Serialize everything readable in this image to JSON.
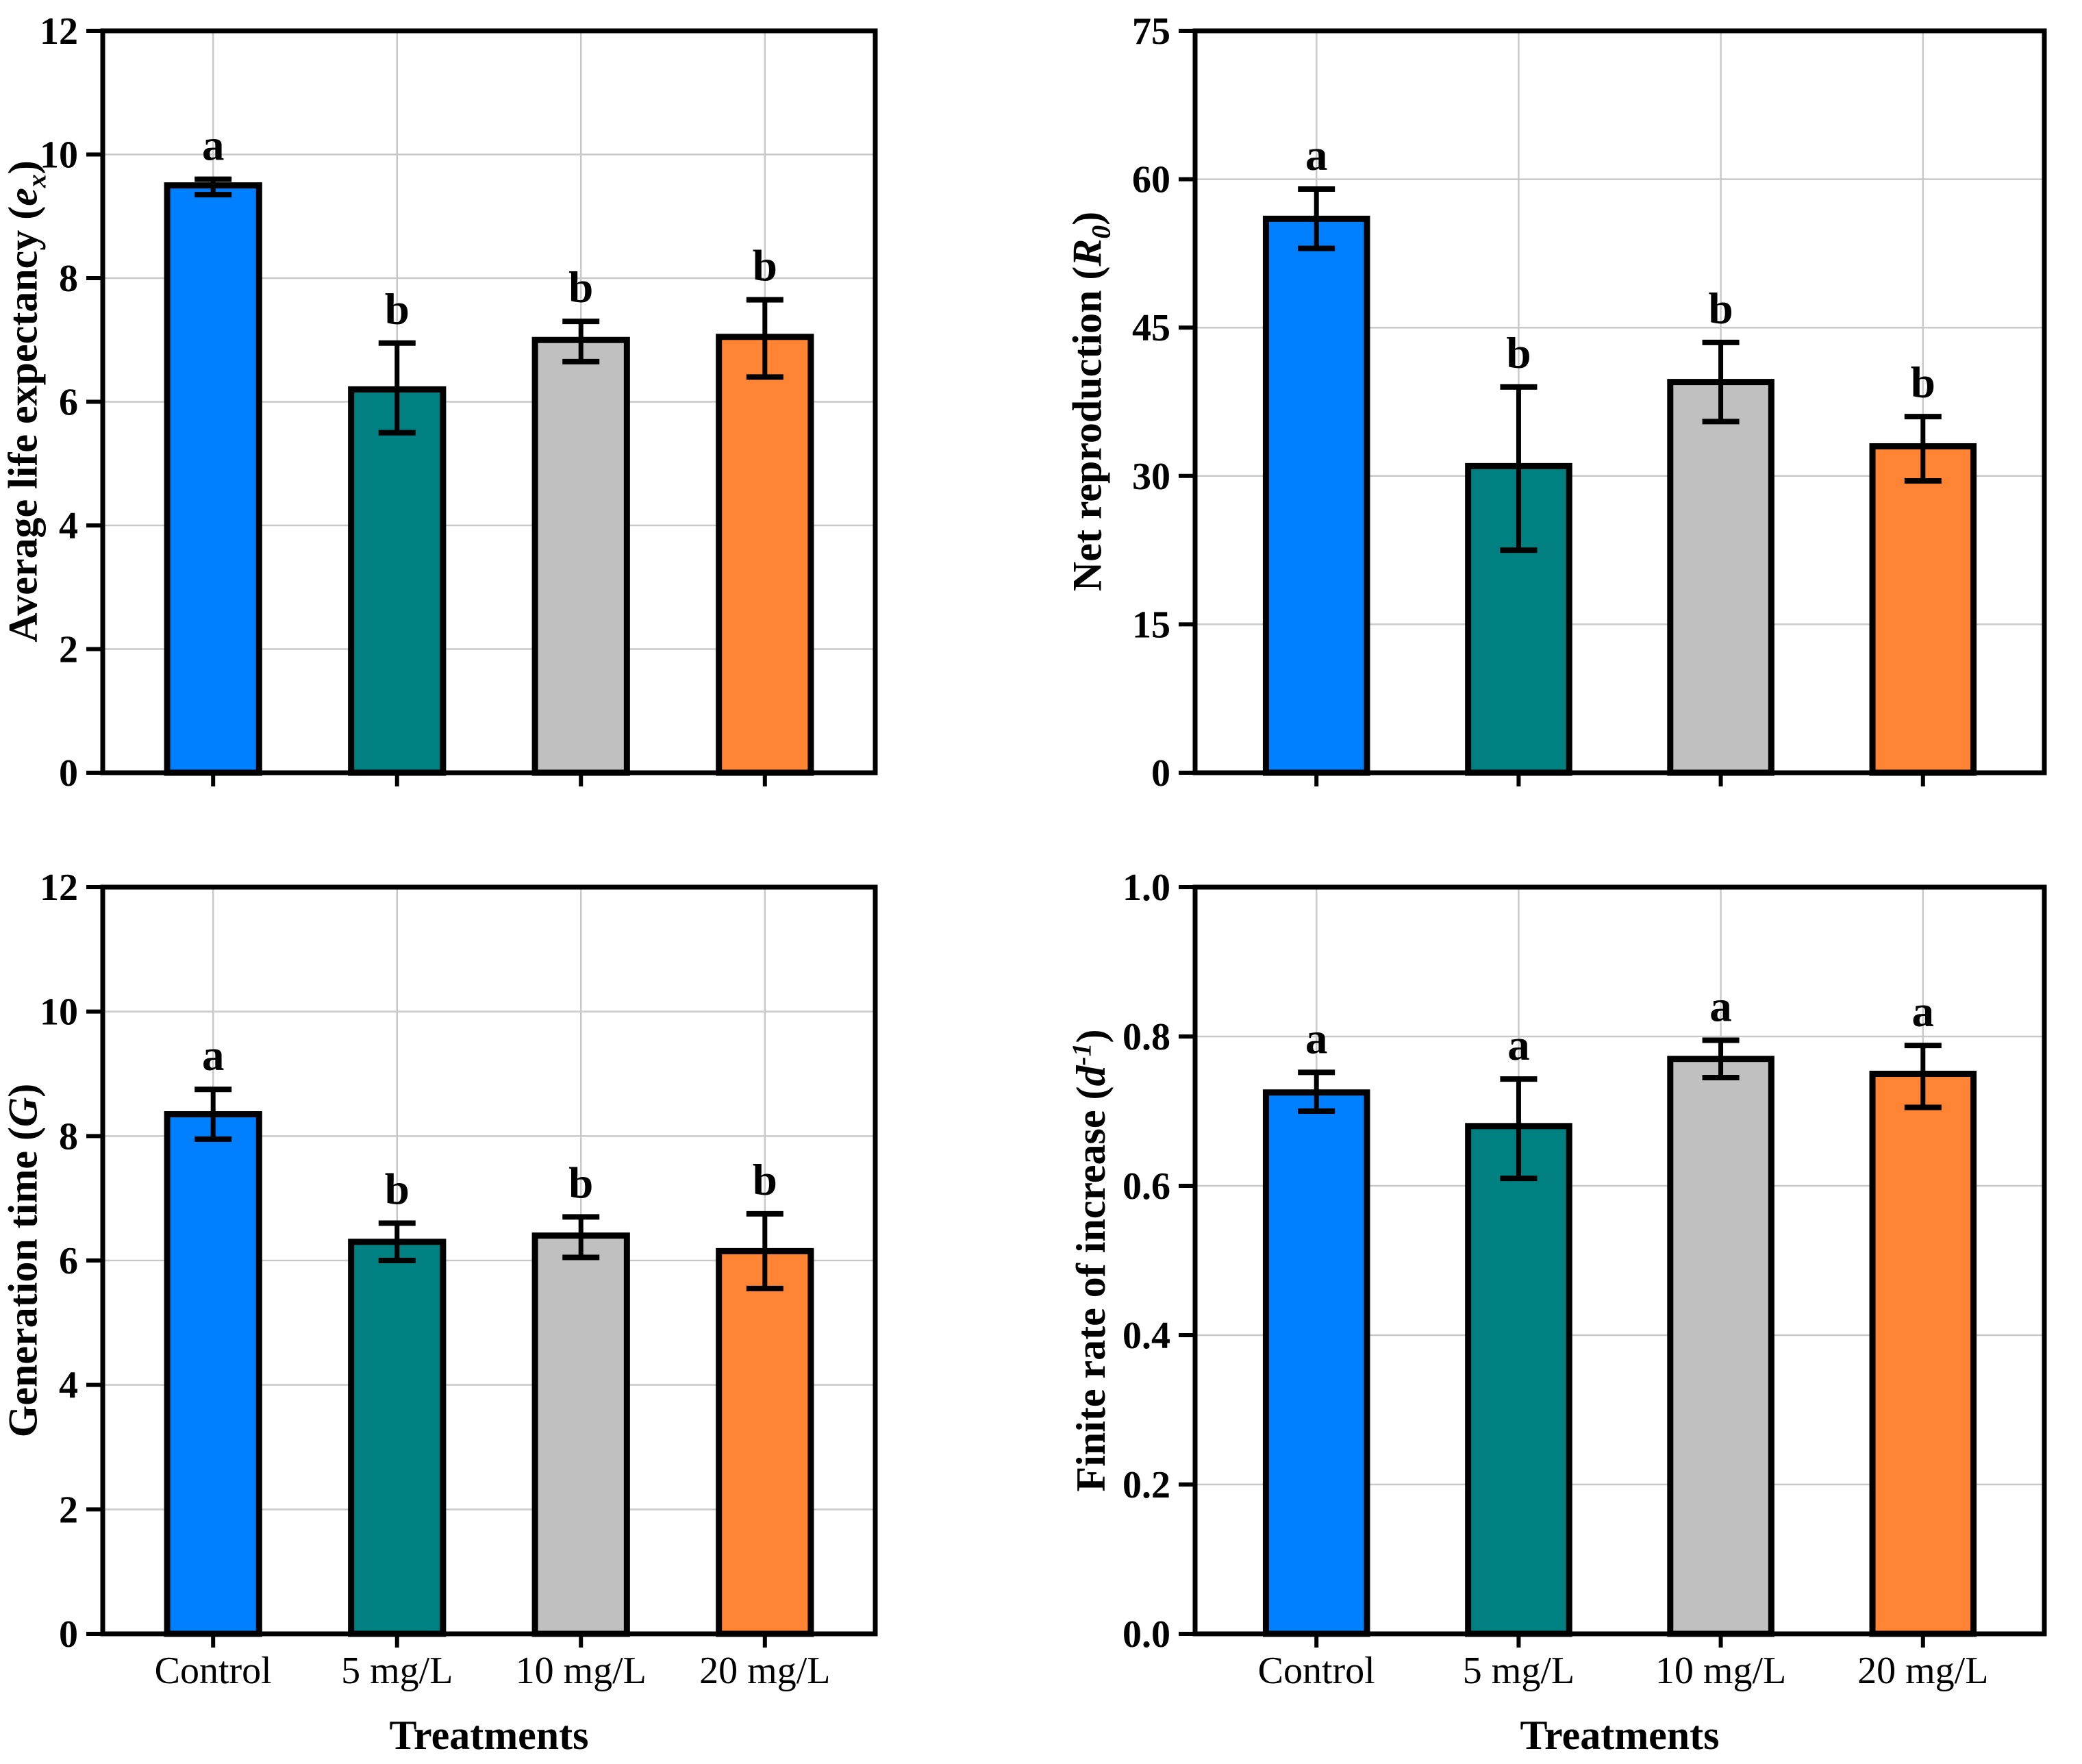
{
  "figure": {
    "background": "#ffffff",
    "panels_order": [
      "top-left",
      "top-right",
      "bottom-left",
      "bottom-right"
    ]
  },
  "colors": {
    "bar_fills": [
      "#0080FF",
      "#008080",
      "#C0C0C0",
      "#FF8534"
    ],
    "bar_border": "#000000",
    "gridline": "#C9C9C9",
    "axis": "#000000",
    "text": "#000000"
  },
  "categories": [
    "Control",
    "5 mg/L",
    "10 mg/L",
    "20 mg/L"
  ],
  "x_axis_title": "Treatments",
  "chart_data": [
    {
      "type": "bar",
      "panel": "top-left",
      "ylabel_text": "Average life expectancy (ex)",
      "ylabel_parts": {
        "prefix": "Average life expectancy (",
        "symbol": "e",
        "sub": "x",
        "suffix": ")"
      },
      "categories": [
        "Control",
        "5 mg/L",
        "10 mg/L",
        "20 mg/L"
      ],
      "values": [
        9.5,
        6.2,
        7.0,
        7.05
      ],
      "error_low": [
        9.35,
        5.5,
        6.65,
        6.4
      ],
      "error_high": [
        9.6,
        6.95,
        7.3,
        7.65
      ],
      "letters": [
        "a",
        "b",
        "b",
        "b"
      ],
      "ylim": [
        0,
        12
      ],
      "yticks": [
        0,
        2,
        4,
        6,
        8,
        10,
        12
      ],
      "ytick_labels": [
        "0",
        "2",
        "4",
        "6",
        "8",
        "10",
        "12"
      ],
      "grid": true,
      "show_x_labels": false
    },
    {
      "type": "bar",
      "panel": "top-right",
      "ylabel_text": "Net reproduction (R0)",
      "ylabel_parts": {
        "prefix": "Net reproduction (",
        "symbol": "R",
        "sub": "0",
        "suffix": ")"
      },
      "categories": [
        "Control",
        "5 mg/L",
        "10 mg/L",
        "20 mg/L"
      ],
      "values": [
        56,
        31,
        39.5,
        33
      ],
      "error_low": [
        53,
        22.5,
        35.5,
        29.5
      ],
      "error_high": [
        59,
        39,
        43.5,
        36
      ],
      "letters": [
        "a",
        "b",
        "b",
        "b"
      ],
      "ylim": [
        0,
        75
      ],
      "yticks": [
        0,
        15,
        30,
        45,
        60,
        75
      ],
      "ytick_labels": [
        "0",
        "15",
        "30",
        "45",
        "60",
        "75"
      ],
      "grid": true,
      "show_x_labels": false
    },
    {
      "type": "bar",
      "panel": "bottom-left",
      "ylabel_text": "Generation time (G)",
      "ylabel_parts": {
        "prefix": "Generation time (",
        "symbol": "G",
        "suffix": ")"
      },
      "categories": [
        "Control",
        "5 mg/L",
        "10 mg/L",
        "20 mg/L"
      ],
      "values": [
        8.35,
        6.3,
        6.4,
        6.15
      ],
      "error_low": [
        7.95,
        6.0,
        6.05,
        5.55
      ],
      "error_high": [
        8.75,
        6.6,
        6.7,
        6.75
      ],
      "letters": [
        "a",
        "b",
        "b",
        "b"
      ],
      "ylim": [
        0,
        12
      ],
      "yticks": [
        0,
        2,
        4,
        6,
        8,
        10,
        12
      ],
      "ytick_labels": [
        "0",
        "2",
        "4",
        "6",
        "8",
        "10",
        "12"
      ],
      "grid": true,
      "show_x_labels": true,
      "x_title": "Treatments"
    },
    {
      "type": "bar",
      "panel": "bottom-right",
      "ylabel_text": "Finite rate of increase (d-1)",
      "ylabel_parts": {
        "prefix": "Finite rate of increase (",
        "symbol": "d",
        "sup": "-1",
        "suffix": ")"
      },
      "categories": [
        "Control",
        "5 mg/L",
        "10 mg/L",
        "20 mg/L"
      ],
      "values": [
        0.725,
        0.68,
        0.77,
        0.75
      ],
      "error_low": [
        0.7,
        0.61,
        0.745,
        0.705
      ],
      "error_high": [
        0.752,
        0.743,
        0.795,
        0.788
      ],
      "letters": [
        "a",
        "a",
        "a",
        "a"
      ],
      "ylim": [
        0,
        1.0
      ],
      "yticks": [
        0,
        0.2,
        0.4,
        0.6,
        0.8,
        1.0
      ],
      "ytick_labels": [
        "0.0",
        "0.2",
        "0.4",
        "0.6",
        "0.8",
        "1.0"
      ],
      "grid": true,
      "show_x_labels": true,
      "x_title": "Treatments"
    }
  ]
}
